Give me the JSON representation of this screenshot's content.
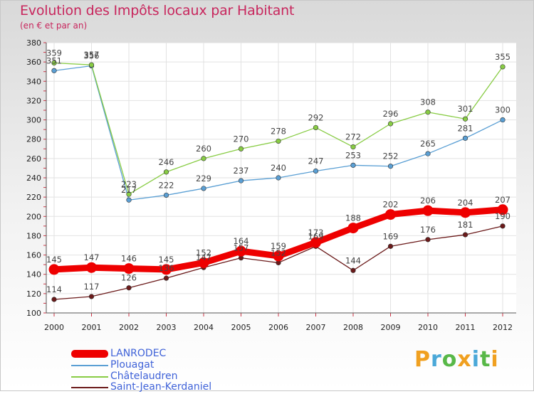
{
  "chart_data": {
    "type": "line",
    "title": "Evolution des Impôts locaux par Habitant",
    "subtitle": "(en € et par an)",
    "xlabel": "",
    "ylabel": "",
    "ylim": [
      100,
      380
    ],
    "yticks": [
      100,
      120,
      140,
      160,
      180,
      200,
      220,
      240,
      260,
      280,
      300,
      320,
      340,
      360,
      380
    ],
    "grid": true,
    "legend": "bottom-left",
    "categories": [
      "2000",
      "2001",
      "2002",
      "2003",
      "2004",
      "2005",
      "2006",
      "2007",
      "2008",
      "2009",
      "2010",
      "2011",
      "2012"
    ],
    "series": [
      {
        "name": "LANRODEC",
        "color": "#ee0000",
        "values": [
          145,
          147,
          146,
          145,
          152,
          164,
          159,
          173,
          188,
          202,
          206,
          204,
          207
        ],
        "labels": [
          "145",
          "147",
          "146",
          "145",
          "152",
          "164",
          "159",
          "173",
          "188",
          "202",
          "206",
          "204",
          "207"
        ]
      },
      {
        "name": "Plouagat",
        "color": "#5a9fd4",
        "values": [
          351,
          356,
          217,
          222,
          229,
          237,
          240,
          247,
          253,
          252,
          265,
          281,
          300
        ],
        "labels": [
          "351",
          "356",
          "217",
          "222",
          "229",
          "237",
          "240",
          "247",
          "253",
          "252",
          "265",
          "281",
          "300"
        ]
      },
      {
        "name": "Châtelaudren",
        "color": "#88cc44",
        "values": [
          359,
          357,
          223,
          246,
          260,
          270,
          278,
          292,
          272,
          296,
          308,
          301,
          355
        ],
        "labels": [
          "359",
          "357",
          "223",
          "246",
          "260",
          "270",
          "278",
          "292",
          "272",
          "296",
          "308",
          "301",
          "355"
        ]
      },
      {
        "name": "Saint-Jean-Kerdaniel",
        "color": "#6b1a1a",
        "values": [
          114,
          117,
          126,
          136,
          147,
          157,
          152,
          169,
          144,
          169,
          176,
          181,
          190
        ],
        "labels": [
          "114",
          "117",
          "126",
          "136",
          "147",
          "157",
          "152",
          "169",
          "144",
          "169",
          "176",
          "181",
          "190"
        ]
      }
    ]
  },
  "logo": {
    "letters": [
      "P",
      "r",
      "o",
      "x",
      "i",
      "t",
      "i"
    ],
    "colors": [
      "#f0a020",
      "#4aa8d8",
      "#58b848",
      "#f0a020",
      "#4aa8d8",
      "#58b848",
      "#f0a020"
    ]
  }
}
